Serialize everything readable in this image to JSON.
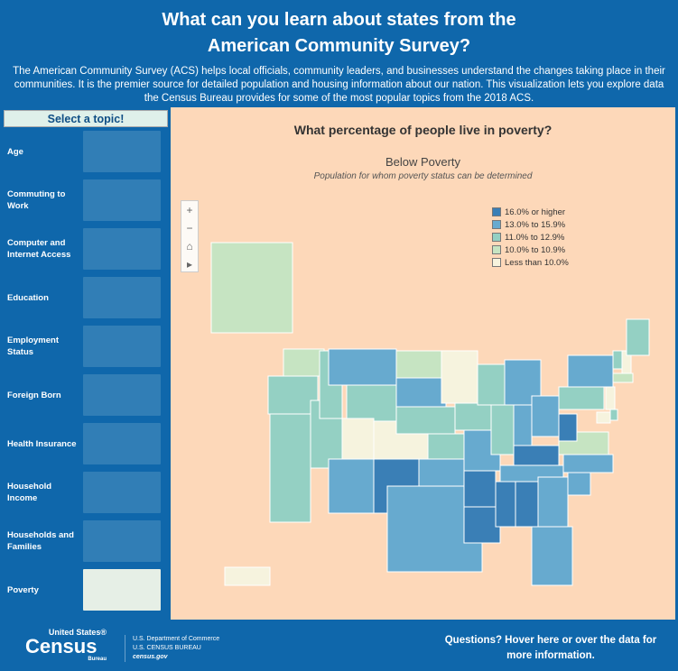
{
  "header": {
    "title_line1": "What can you learn about states from the",
    "title_line2": "American Community Survey?",
    "intro": "The American Community Survey (ACS) helps local officials, community leaders, and businesses understand the changes taking place in their communities. It is the premier source for detailed population and housing information about our nation. This visualization lets you explore data the Census Bureau provides for some of the most popular topics from the 2018 ACS."
  },
  "sidebar": {
    "header": "Select a topic!",
    "items": [
      {
        "label": "Age"
      },
      {
        "label": "Commuting to Work"
      },
      {
        "label": "Computer and Internet Access"
      },
      {
        "label": "Education"
      },
      {
        "label": "Employment Status"
      },
      {
        "label": "Foreign Born"
      },
      {
        "label": "Health Insurance"
      },
      {
        "label": "Household Income"
      },
      {
        "label": "Households and Families"
      },
      {
        "label": "Poverty",
        "selected": true
      }
    ]
  },
  "main": {
    "question": "What percentage of people live in poverty?",
    "map_title": "Below Poverty",
    "map_subtitle": "Population for whom poverty status can be determined",
    "tools": [
      "+",
      "−",
      "⌂",
      "▸"
    ]
  },
  "legend": [
    {
      "label": "16.0% or higher",
      "color": "#3a7fb6"
    },
    {
      "label": "13.0% to 15.9%",
      "color": "#67aacf"
    },
    {
      "label": "11.0% to 12.9%",
      "color": "#94d0c3"
    },
    {
      "label": "10.0% to 10.9%",
      "color": "#c6e4c2"
    },
    {
      "label": "Less than 10.0%",
      "color": "#f6f3de"
    }
  ],
  "states": {
    "WA": 3,
    "OR": 2,
    "CA": 2,
    "NV": 2,
    "ID": 2,
    "MT": 1,
    "WY": 2,
    "UT": 4,
    "CO": 4,
    "AZ": 1,
    "NM": 0,
    "ND": 3,
    "SD": 1,
    "NE": 2,
    "KS": 2,
    "OK": 1,
    "TX": 1,
    "MN": 4,
    "IA": 2,
    "MO": 1,
    "AR": 0,
    "LA": 0,
    "WI": 2,
    "IL": 2,
    "MI": 1,
    "IN": 1,
    "OH": 1,
    "KY": 0,
    "TN": 1,
    "MS": 0,
    "AL": 0,
    "GA": 1,
    "FL": 1,
    "SC": 1,
    "NC": 1,
    "VA": 3,
    "WV": 0,
    "PA": 2,
    "NY": 1,
    "VT": 2,
    "NH": 4,
    "ME": 2,
    "MA": 3,
    "NJ": 4,
    "MD": 4,
    "DE": 2,
    "AK": 3,
    "HI": 4
  },
  "footer": {
    "logo_top": "United States®",
    "logo_main": "Census",
    "logo_bottom": "Bureau",
    "dept": "U.S. Department of Commerce",
    "bureau": "U.S. CENSUS BUREAU",
    "site": "census.gov",
    "questions": "Questions? Hover here or over the data for more information."
  }
}
